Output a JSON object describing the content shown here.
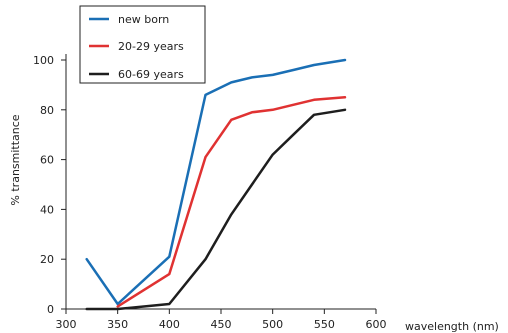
{
  "chart_data": {
    "type": "line",
    "title": "",
    "xlabel": "wavelength (nm)",
    "ylabel": "% transmittance",
    "xlim": [
      300,
      600
    ],
    "ylim": [
      0,
      100
    ],
    "xticks": [
      300,
      350,
      400,
      450,
      500,
      550,
      600
    ],
    "yticks": [
      0,
      20,
      40,
      60,
      80,
      100
    ],
    "grid": false,
    "legend_position": "top-left",
    "series": [
      {
        "name": "new born",
        "color": "#1a6fb5",
        "x": [
          320,
          350,
          400,
          435,
          460,
          480,
          500,
          520,
          540,
          570
        ],
        "y": [
          20,
          2,
          21,
          86,
          91,
          93,
          94,
          96,
          98,
          100
        ]
      },
      {
        "name": "20-29 years",
        "color": "#e03232",
        "x": [
          350,
          400,
          435,
          460,
          480,
          500,
          520,
          540,
          570
        ],
        "y": [
          1,
          14,
          61,
          76,
          79,
          80,
          82,
          84,
          85
        ]
      },
      {
        "name": "60-69 years",
        "color": "#1e1e1e",
        "x": [
          320,
          350,
          400,
          435,
          460,
          480,
          500,
          520,
          540,
          570
        ],
        "y": [
          0,
          0,
          2,
          20,
          38,
          50,
          62,
          70,
          78,
          80
        ]
      }
    ]
  }
}
